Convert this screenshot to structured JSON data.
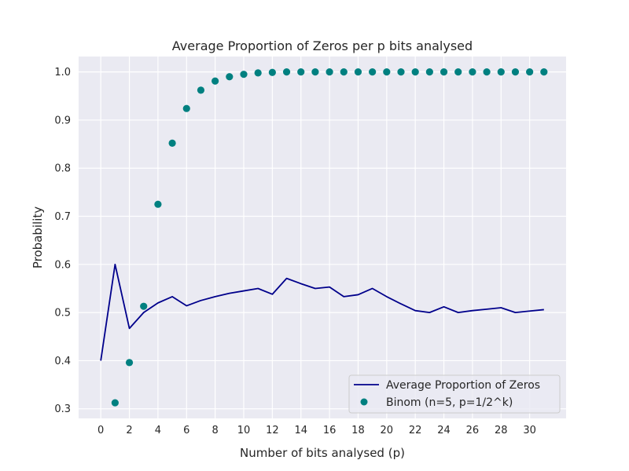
{
  "chart_data": {
    "type": "line",
    "title": "Average Proportion of Zeros per p bits analysed",
    "xlabel": "Number of bits analysed (p)",
    "ylabel": "Probability",
    "xlim": [
      -1.55,
      32.55
    ],
    "ylim": [
      0.28,
      1.032
    ],
    "xticks": [
      0,
      2,
      4,
      6,
      8,
      10,
      12,
      14,
      16,
      18,
      20,
      22,
      24,
      26,
      28,
      30
    ],
    "yticks": [
      0.3,
      0.4,
      0.5,
      0.6,
      0.7,
      0.8,
      0.9,
      1.0
    ],
    "ytick_labels": [
      "0.3",
      "0.4",
      "0.5",
      "0.6",
      "0.7",
      "0.8",
      "0.9",
      "1.0"
    ],
    "grid": true,
    "legend_position": "lower-right",
    "series": [
      {
        "name": "Average Proportion of Zeros",
        "kind": "line",
        "color": "#00008b",
        "x": [
          0,
          1,
          2,
          3,
          4,
          5,
          6,
          7,
          8,
          9,
          10,
          11,
          12,
          13,
          14,
          15,
          16,
          17,
          18,
          19,
          20,
          21,
          22,
          23,
          24,
          25,
          26,
          27,
          28,
          29,
          30,
          31
        ],
        "y": [
          0.4,
          0.6,
          0.467,
          0.5,
          0.52,
          0.533,
          0.514,
          0.525,
          0.533,
          0.54,
          0.545,
          0.55,
          0.538,
          0.571,
          0.56,
          0.55,
          0.553,
          0.533,
          0.537,
          0.55,
          0.533,
          0.518,
          0.504,
          0.5,
          0.512,
          0.5,
          0.504,
          0.507,
          0.51,
          0.5,
          0.503,
          0.506
        ]
      },
      {
        "name": "Binom (n=5, p=1/2^k)",
        "kind": "scatter",
        "color": "#008080",
        "x": [
          1,
          2,
          3,
          4,
          5,
          6,
          7,
          8,
          9,
          10,
          11,
          12,
          13,
          14,
          15,
          16,
          17,
          18,
          19,
          20,
          21,
          22,
          23,
          24,
          25,
          26,
          27,
          28,
          29,
          30,
          31
        ],
        "y": [
          0.3125,
          0.396,
          0.513,
          0.725,
          0.852,
          0.924,
          0.962,
          0.981,
          0.99,
          0.995,
          0.998,
          0.999,
          1.0,
          1.0,
          1.0,
          1.0,
          1.0,
          1.0,
          1.0,
          1.0,
          1.0,
          1.0,
          1.0,
          1.0,
          1.0,
          1.0,
          1.0,
          1.0,
          1.0,
          1.0,
          1.0
        ]
      }
    ]
  }
}
